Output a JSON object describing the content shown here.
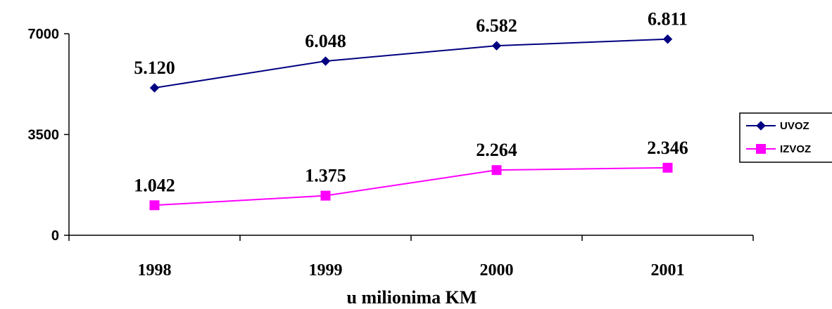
{
  "chart_data": {
    "type": "line",
    "title": "",
    "xlabel": "u milionima KM",
    "ylabel": "",
    "categories": [
      "1998",
      "1999",
      "2000",
      "2001"
    ],
    "yticks": [
      "0",
      "3500",
      "7000"
    ],
    "ylim": [
      0,
      7000
    ],
    "grid": false,
    "legend": "right",
    "series": [
      {
        "name": "UVOZ",
        "values": [
          5120,
          6048,
          6582,
          6811
        ],
        "labels": [
          "5.120",
          "6.048",
          "6.582",
          "6.811"
        ],
        "color": "#000080",
        "marker": "diamond"
      },
      {
        "name": "IZVOZ",
        "values": [
          1042,
          1375,
          2264,
          2346
        ],
        "labels": [
          "1.042",
          "1.375",
          "2.264",
          "2.346"
        ],
        "color": "#ff00ff",
        "marker": "square"
      }
    ]
  }
}
